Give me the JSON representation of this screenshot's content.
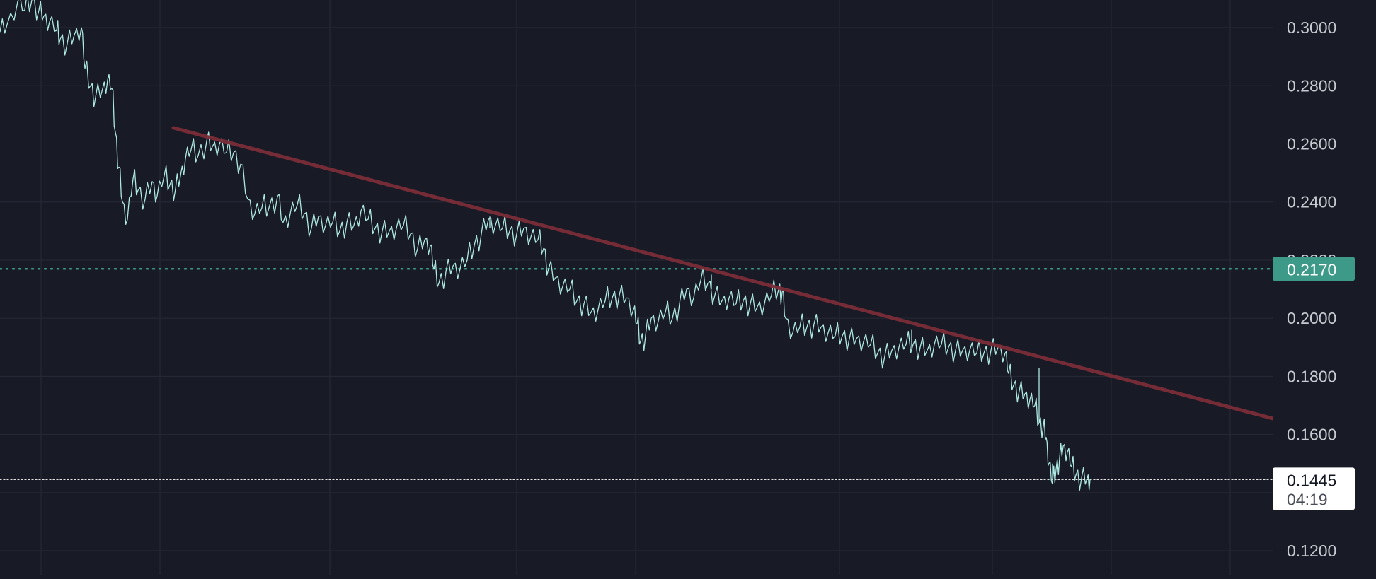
{
  "chart_data": {
    "type": "line",
    "y_axis": {
      "ticks": [
        "0.3000",
        "0.2800",
        "0.2600",
        "0.2400",
        "0.2200",
        "0.2000",
        "0.1800",
        "0.1600",
        "0.1200"
      ],
      "ylim": [
        0.1115,
        0.3095
      ]
    },
    "price_series": {
      "points": [
        [
          0,
          0.2985
        ],
        [
          10,
          0.301
        ],
        [
          25,
          0.309
        ],
        [
          35,
          0.306
        ],
        [
          45,
          0.3095
        ],
        [
          55,
          0.306
        ],
        [
          62,
          0.304
        ],
        [
          70,
          0.302
        ],
        [
          80,
          0.299
        ],
        [
          85,
          0.296
        ],
        [
          95,
          0.2945
        ],
        [
          105,
          0.2975
        ],
        [
          115,
          0.3
        ],
        [
          120,
          0.286
        ],
        [
          128,
          0.28
        ],
        [
          135,
          0.276
        ],
        [
          145,
          0.279
        ],
        [
          152,
          0.282
        ],
        [
          158,
          0.279
        ],
        [
          163,
          0.264
        ],
        [
          168,
          0.252
        ],
        [
          173,
          0.24
        ],
        [
          180,
          0.234
        ],
        [
          188,
          0.248
        ],
        [
          195,
          0.244
        ],
        [
          205,
          0.241
        ],
        [
          215,
          0.247
        ],
        [
          222,
          0.242
        ],
        [
          232,
          0.249
        ],
        [
          240,
          0.246
        ],
        [
          248,
          0.2445
        ],
        [
          255,
          0.249
        ],
        [
          262,
          0.255
        ],
        [
          270,
          0.258
        ],
        [
          280,
          0.256
        ],
        [
          292,
          0.261
        ],
        [
          300,
          0.259
        ],
        [
          310,
          0.26
        ],
        [
          320,
          0.257
        ],
        [
          330,
          0.257
        ],
        [
          340,
          0.253
        ],
        [
          350,
          0.241
        ],
        [
          360,
          0.236
        ],
        [
          370,
          0.238
        ],
        [
          380,
          0.238
        ],
        [
          392,
          0.242
        ],
        [
          400,
          0.233
        ],
        [
          410,
          0.236
        ],
        [
          420,
          0.239
        ],
        [
          430,
          0.236
        ],
        [
          440,
          0.231
        ],
        [
          450,
          0.235
        ],
        [
          460,
          0.232
        ],
        [
          470,
          0.233
        ],
        [
          480,
          0.23
        ],
        [
          490,
          0.233
        ],
        [
          500,
          0.232
        ],
        [
          510,
          0.237
        ],
        [
          520,
          0.234
        ],
        [
          530,
          0.231
        ],
        [
          540,
          0.23
        ],
        [
          550,
          0.23
        ],
        [
          560,
          0.231
        ],
        [
          570,
          0.232
        ],
        [
          580,
          0.229
        ],
        [
          590,
          0.224
        ],
        [
          600,
          0.227
        ],
        [
          608,
          0.225
        ],
        [
          613,
          0.217
        ],
        [
          620,
          0.212
        ],
        [
          630,
          0.216
        ],
        [
          640,
          0.218
        ],
        [
          650,
          0.217
        ],
        [
          660,
          0.22
        ],
        [
          670,
          0.225
        ],
        [
          680,
          0.229
        ],
        [
          690,
          0.234
        ],
        [
          700,
          0.232
        ],
        [
          710,
          0.231
        ],
        [
          720,
          0.23
        ],
        [
          730,
          0.229
        ],
        [
          740,
          0.231
        ],
        [
          750,
          0.228
        ],
        [
          760,
          0.227
        ],
        [
          768,
          0.224
        ],
        [
          775,
          0.217
        ],
        [
          785,
          0.214
        ],
        [
          795,
          0.211
        ],
        [
          805,
          0.21
        ],
        [
          815,
          0.206
        ],
        [
          825,
          0.205
        ],
        [
          835,
          0.202
        ],
        [
          845,
          0.203
        ],
        [
          855,
          0.206
        ],
        [
          865,
          0.207
        ],
        [
          875,
          0.208
        ],
        [
          885,
          0.207
        ],
        [
          895,
          0.203
        ],
        [
          900,
          0.198
        ],
        [
          905,
          0.192
        ],
        [
          912,
          0.194
        ],
        [
          920,
          0.2
        ],
        [
          930,
          0.199
        ],
        [
          940,
          0.202
        ],
        [
          950,
          0.2
        ],
        [
          960,
          0.205
        ],
        [
          970,
          0.21
        ],
        [
          980,
          0.207
        ],
        [
          990,
          0.213
        ],
        [
          1000,
          0.212
        ],
        [
          1010,
          0.208
        ],
        [
          1020,
          0.206
        ],
        [
          1030,
          0.207
        ],
        [
          1040,
          0.205
        ],
        [
          1050,
          0.206
        ],
        [
          1060,
          0.205
        ],
        [
          1070,
          0.204
        ],
        [
          1080,
          0.205
        ],
        [
          1090,
          0.208
        ],
        [
          1100,
          0.21
        ],
        [
          1105,
          0.209
        ],
        [
          1110,
          0.2
        ],
        [
          1120,
          0.195
        ],
        [
          1130,
          0.197
        ],
        [
          1140,
          0.197
        ],
        [
          1150,
          0.198
        ],
        [
          1160,
          0.197
        ],
        [
          1170,
          0.195
        ],
        [
          1180,
          0.194
        ],
        [
          1190,
          0.194
        ],
        [
          1200,
          0.193
        ],
        [
          1210,
          0.193
        ],
        [
          1220,
          0.192
        ],
        [
          1230,
          0.191
        ],
        [
          1240,
          0.188
        ],
        [
          1250,
          0.187
        ],
        [
          1260,
          0.189
        ],
        [
          1270,
          0.19
        ],
        [
          1280,
          0.191
        ],
        [
          1290,
          0.191
        ],
        [
          1300,
          0.19
        ],
        [
          1310,
          0.189
        ],
        [
          1320,
          0.191
        ],
        [
          1330,
          0.191
        ],
        [
          1340,
          0.19
        ],
        [
          1350,
          0.189
        ],
        [
          1360,
          0.189
        ],
        [
          1370,
          0.189
        ],
        [
          1380,
          0.188
        ],
        [
          1390,
          0.188
        ],
        [
          1400,
          0.189
        ],
        [
          1410,
          0.19
        ],
        [
          1420,
          0.188
        ],
        [
          1425,
          0.181
        ],
        [
          1432,
          0.177
        ],
        [
          1440,
          0.175
        ],
        [
          1448,
          0.174
        ],
        [
          1455,
          0.172
        ],
        [
          1462,
          0.17
        ],
        [
          1468,
          0.164
        ],
        [
          1474,
          0.163
        ],
        [
          1478,
          0.159
        ],
        [
          1482,
          0.15
        ],
        [
          1487,
          0.143
        ],
        [
          1492,
          0.148
        ],
        [
          1497,
          0.152
        ],
        [
          1502,
          0.156
        ],
        [
          1508,
          0.154
        ],
        [
          1514,
          0.149
        ],
        [
          1520,
          0.146
        ],
        [
          1528,
          0.145
        ],
        [
          1536,
          0.145
        ],
        [
          1540,
          0.1445
        ]
      ],
      "wicks": [
        [
          1468,
          0.164,
          0.183
        ],
        [
          1487,
          0.143,
          0.15
        ],
        [
          1288,
          0.189,
          0.196
        ],
        [
          1005,
          0.21,
          0.215
        ],
        [
          692,
          0.231,
          0.235
        ]
      ],
      "color": "#aee8e2"
    },
    "trendline": {
      "from": [
        245,
        0.2655
      ],
      "to": [
        1800,
        0.1654
      ],
      "color": "#7a2d38"
    },
    "horizontal_levels": [
      {
        "label": "0.2170",
        "value": 0.217,
        "style": "dotted",
        "color": "#3d9a88"
      },
      {
        "label": "0.1445",
        "value": 0.1445,
        "style": "dotted",
        "color": "#ffffff"
      }
    ],
    "last_price": {
      "label": "0.1445",
      "countdown": "04:19"
    },
    "grid": true,
    "legend": "none"
  },
  "colors": {
    "background": "#181a25",
    "grid": "#272a36",
    "axis_text": "#c9cbd2",
    "level_badge": "#3d9a88",
    "last_price_badge": "#ffffff"
  }
}
